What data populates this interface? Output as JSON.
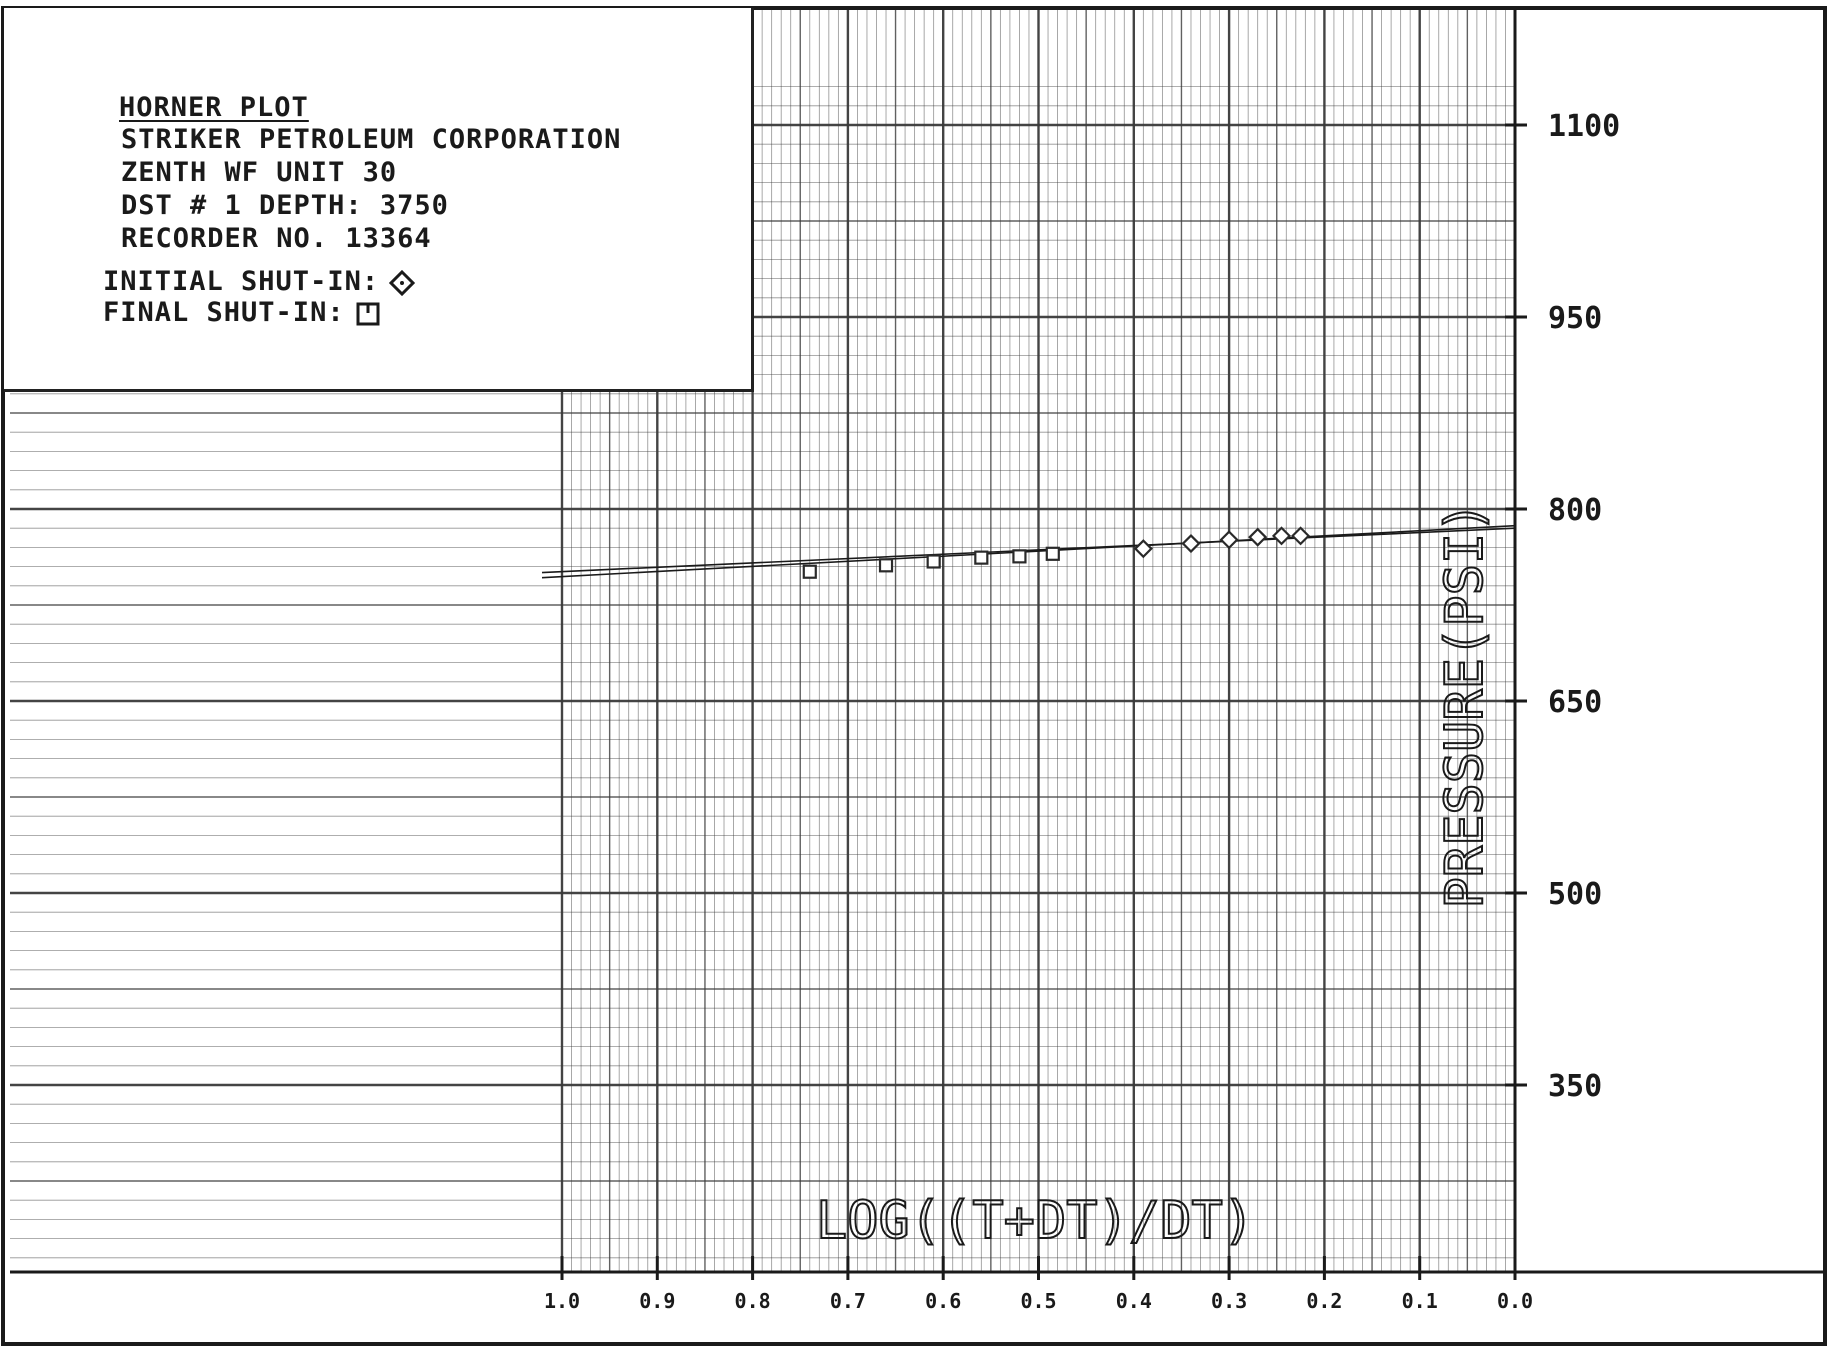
{
  "chart_data": {
    "type": "scatter",
    "title": "HORNER PLOT",
    "info_lines": [
      "STRIKER PETROLEUM CORPORATION",
      "ZENTH WF UNIT 30",
      "DST # 1    DEPTH: 3750",
      "RECORDER NO. 13364"
    ],
    "xlabel": "LOG((T+DT)/DT)",
    "ylabel": "PRESSURE(PSI)",
    "xlim": [
      1.0,
      0.0
    ],
    "ylim": [
      200,
      1125
    ],
    "x_reversed": true,
    "x_ticks": [
      1.0,
      0.9,
      0.8,
      0.7,
      0.6,
      0.5,
      0.4,
      0.3,
      0.2,
      0.1,
      0.0
    ],
    "x_tick_labels": [
      "1.0",
      "0.9",
      "0.8",
      "0.7",
      "0.6",
      "0.5",
      "0.4",
      "0.3",
      "0.2",
      "0.1",
      "0.0"
    ],
    "y_ticks": [
      350,
      500,
      650,
      800,
      950,
      1100
    ],
    "y_tick_labels": [
      "350",
      "500",
      "650",
      "800",
      "950",
      "1100"
    ],
    "grid": true,
    "legend_position": "top-left",
    "series": [
      {
        "name": "INITIAL SHUT-IN:",
        "marker": "diamond",
        "x": [
          0.39,
          0.34,
          0.3,
          0.27,
          0.245,
          0.225
        ],
        "y": [
          769,
          773,
          776,
          778,
          779,
          779
        ]
      },
      {
        "name": "FINAL SHUT-IN:",
        "marker": "square",
        "x": [
          0.74,
          0.66,
          0.61,
          0.56,
          0.52,
          0.485
        ],
        "y": [
          751,
          756,
          759,
          762,
          763,
          765
        ]
      }
    ],
    "fit_lines": [
      {
        "x": [
          1.0,
          0.0
        ],
        "y": [
          747,
          787
        ]
      },
      {
        "x": [
          1.0,
          0.0
        ],
        "y": [
          751,
          785
        ]
      }
    ]
  },
  "colors": {
    "grid": "#3a3a3a",
    "frame": "#1a1a1a",
    "marker": "#2a2a2a",
    "background": "#ffffff"
  }
}
